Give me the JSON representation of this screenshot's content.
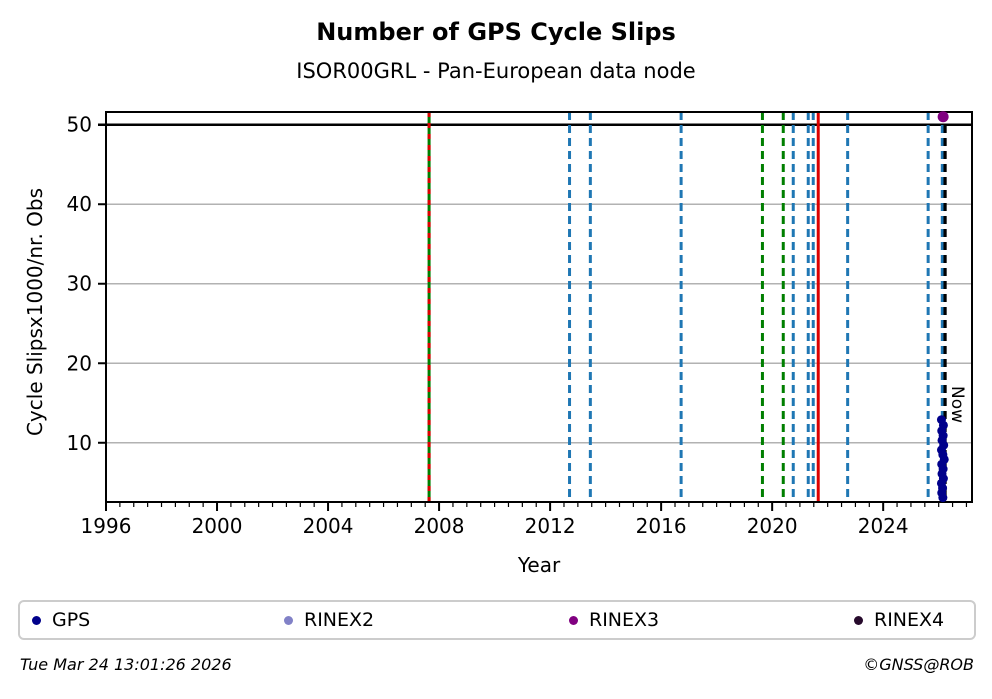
{
  "header": {
    "title": "Number of GPS Cycle Slips",
    "subtitle": "ISOR00GRL - Pan-European data node"
  },
  "chart_data": {
    "type": "scatter",
    "title": "Number of GPS Cycle Slips",
    "subtitle": "ISOR00GRL - Pan-European data node",
    "xlabel": "Year",
    "ylabel": "Cycle Slipsx1000/nr. Obs",
    "xlim": [
      1996,
      2027.2
    ],
    "ylim": [
      2.55,
      51.6
    ],
    "xticks": [
      1996,
      2000,
      2004,
      2008,
      2012,
      2016,
      2020,
      2024
    ],
    "x_minor_step": 0.5,
    "yticks": [
      10,
      20,
      30,
      40,
      50
    ],
    "grid": "horizontal",
    "grid_color": "#b2b2b2",
    "cap_line": {
      "y": 50,
      "color": "#000000"
    },
    "event_lines": [
      {
        "year": 2007.64,
        "color": "#007f00",
        "style": "solid",
        "overlay_color": "#dd0000",
        "overlay_style": "dashed"
      },
      {
        "year": 2012.7,
        "color": "#1f77b4",
        "style": "dashed"
      },
      {
        "year": 2013.45,
        "color": "#1f77b4",
        "style": "dashed"
      },
      {
        "year": 2016.72,
        "color": "#1f77b4",
        "style": "dashed"
      },
      {
        "year": 2019.65,
        "color": "#007f00",
        "style": "dashed"
      },
      {
        "year": 2020.4,
        "color": "#007f00",
        "style": "dashed"
      },
      {
        "year": 2020.76,
        "color": "#1f77b4",
        "style": "dashed"
      },
      {
        "year": 2021.3,
        "color": "#1f77b4",
        "style": "dashed"
      },
      {
        "year": 2021.48,
        "color": "#1f77b4",
        "style": "dashed"
      },
      {
        "year": 2021.66,
        "color": "#dd0000",
        "style": "solid"
      },
      {
        "year": 2022.72,
        "color": "#1f77b4",
        "style": "dashed"
      },
      {
        "year": 2025.62,
        "color": "#1f77b4",
        "style": "dashed"
      },
      {
        "year": 2026.13,
        "color": "#1f77b4",
        "style": "dashed"
      }
    ],
    "now_line": {
      "year": 2026.23,
      "color": "#000000",
      "style": "dashed",
      "label": "Now"
    },
    "series": [
      {
        "name": "GPS",
        "color": "#00008b",
        "marker_r": 4.5,
        "points": [
          [
            2026.1,
            12.9
          ],
          [
            2026.17,
            12.2
          ],
          [
            2026.11,
            11.5
          ],
          [
            2026.16,
            10.9
          ],
          [
            2026.12,
            10.3
          ],
          [
            2026.18,
            9.7
          ],
          [
            2026.1,
            9.1
          ],
          [
            2026.15,
            8.5
          ],
          [
            2026.2,
            7.9
          ],
          [
            2026.11,
            7.3
          ],
          [
            2026.16,
            6.7
          ],
          [
            2026.12,
            6.1
          ],
          [
            2026.17,
            5.5
          ],
          [
            2026.1,
            4.9
          ],
          [
            2026.14,
            4.3
          ],
          [
            2026.11,
            3.7
          ],
          [
            2026.15,
            3.1
          ]
        ]
      },
      {
        "name": "RINEX2",
        "color": "#8181c7",
        "marker_r": 4.5,
        "points": []
      },
      {
        "name": "RINEX3",
        "color": "#800080",
        "marker_r": 5.5,
        "points": [
          [
            2026.16,
            51.0
          ]
        ]
      },
      {
        "name": "RINEX4",
        "color": "#270a2c",
        "marker_r": 4.5,
        "points": []
      }
    ]
  },
  "legend": {
    "items": [
      {
        "label": "GPS",
        "color": "#00008b"
      },
      {
        "label": "RINEX2",
        "color": "#8181c7"
      },
      {
        "label": "RINEX3",
        "color": "#800080"
      },
      {
        "label": "RINEX4",
        "color": "#270a2c"
      }
    ]
  },
  "footer": {
    "timestamp": "Tue Mar 24 13:01:26 2026",
    "credit": "©GNSS@ROB"
  }
}
